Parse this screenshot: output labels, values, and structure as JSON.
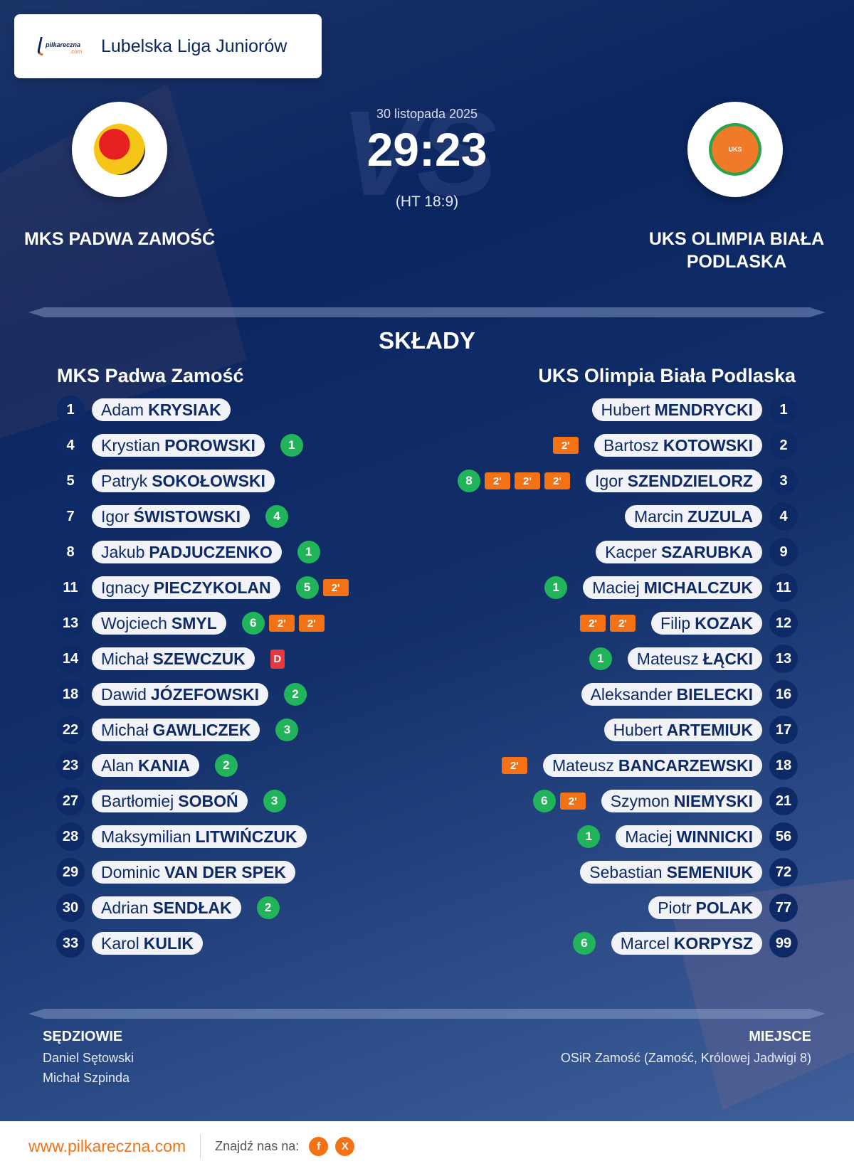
{
  "header": {
    "brand": "pilkareczna",
    "brand_suffix": ".com",
    "league": "Lubelska Liga Juniorów"
  },
  "match": {
    "date": "30 listopada 2025",
    "score": "29:23",
    "halftime": "(HT 18:9)",
    "vs": "VS",
    "home": "MKS PADWA ZAMOŚĆ",
    "away_line1": "UKS OLIMPIA BIAŁA",
    "away_line2": "PODLASKA"
  },
  "colors": {
    "navy": "#0e2a66",
    "goal": "#21b45a",
    "penalty": "#f47216",
    "red_card": "#e8383d"
  },
  "lineups": {
    "title": "SKŁADY",
    "home_title": "MKS Padwa Zamość",
    "away_title": "UKS Olimpia Biała Podlaska",
    "home": [
      {
        "no": "1",
        "first": "Adam",
        "last": "KRYSIAK",
        "goals": "",
        "pens": [],
        "red": ""
      },
      {
        "no": "4",
        "first": "Krystian",
        "last": "POROWSKI",
        "goals": "1",
        "pens": [],
        "red": ""
      },
      {
        "no": "5",
        "first": "Patryk",
        "last": "SOKOŁOWSKI",
        "goals": "",
        "pens": [],
        "red": ""
      },
      {
        "no": "7",
        "first": "Igor",
        "last": "ŚWISTOWSKI",
        "goals": "4",
        "pens": [],
        "red": ""
      },
      {
        "no": "8",
        "first": "Jakub",
        "last": "PADJUCZENKO",
        "goals": "1",
        "pens": [],
        "red": ""
      },
      {
        "no": "11",
        "first": "Ignacy",
        "last": "PIECZYKOLAN",
        "goals": "5",
        "pens": [
          "2'"
        ],
        "red": ""
      },
      {
        "no": "13",
        "first": "Wojciech",
        "last": "SMYL",
        "goals": "6",
        "pens": [
          "2'",
          "2'"
        ],
        "red": ""
      },
      {
        "no": "14",
        "first": "Michał",
        "last": "SZEWCZUK",
        "goals": "",
        "pens": [],
        "red": "D"
      },
      {
        "no": "18",
        "first": "Dawid",
        "last": "JÓZEFOWSKI",
        "goals": "2",
        "pens": [],
        "red": ""
      },
      {
        "no": "22",
        "first": "Michał",
        "last": "GAWLICZEK",
        "goals": "3",
        "pens": [],
        "red": ""
      },
      {
        "no": "23",
        "first": "Alan",
        "last": "KANIA",
        "goals": "2",
        "pens": [],
        "red": ""
      },
      {
        "no": "27",
        "first": "Bartłomiej",
        "last": "SOBOŃ",
        "goals": "3",
        "pens": [],
        "red": ""
      },
      {
        "no": "28",
        "first": "Maksymilian",
        "last": "LITWIŃCZUK",
        "goals": "",
        "pens": [],
        "red": ""
      },
      {
        "no": "29",
        "first": "Dominic",
        "last": "VAN DER SPEK",
        "goals": "",
        "pens": [],
        "red": ""
      },
      {
        "no": "30",
        "first": "Adrian",
        "last": "SENDŁAK",
        "goals": "2",
        "pens": [],
        "red": ""
      },
      {
        "no": "33",
        "first": "Karol",
        "last": "KULIK",
        "goals": "",
        "pens": [],
        "red": ""
      }
    ],
    "away": [
      {
        "no": "1",
        "first": "Hubert",
        "last": "MENDRYCKI",
        "goals": "",
        "pens": [],
        "red": ""
      },
      {
        "no": "2",
        "first": "Bartosz",
        "last": "KOTOWSKI",
        "goals": "",
        "pens": [
          "2'"
        ],
        "red": ""
      },
      {
        "no": "3",
        "first": "Igor",
        "last": "SZENDZIELORZ",
        "goals": "8",
        "pens": [
          "2'",
          "2'",
          "2'"
        ],
        "red": ""
      },
      {
        "no": "4",
        "first": "Marcin",
        "last": "ZUZULA",
        "goals": "",
        "pens": [],
        "red": ""
      },
      {
        "no": "9",
        "first": "Kacper",
        "last": "SZARUBKA",
        "goals": "",
        "pens": [],
        "red": ""
      },
      {
        "no": "11",
        "first": "Maciej",
        "last": "MICHALCZUK",
        "goals": "1",
        "pens": [],
        "red": ""
      },
      {
        "no": "12",
        "first": "Filip",
        "last": "KOZAK",
        "goals": "",
        "pens": [
          "2'",
          "2'"
        ],
        "red": ""
      },
      {
        "no": "13",
        "first": "Mateusz",
        "last": "ŁĄCKI",
        "goals": "1",
        "pens": [],
        "red": ""
      },
      {
        "no": "16",
        "first": "Aleksander",
        "last": "BIELECKI",
        "goals": "",
        "pens": [],
        "red": ""
      },
      {
        "no": "17",
        "first": "Hubert",
        "last": "ARTEMIUK",
        "goals": "",
        "pens": [],
        "red": ""
      },
      {
        "no": "18",
        "first": "Mateusz",
        "last": "BANCARZEWSKI",
        "goals": "",
        "pens": [
          "2'"
        ],
        "red": ""
      },
      {
        "no": "21",
        "first": "Szymon",
        "last": "NIEMYSKI",
        "goals": "6",
        "pens": [
          "2'"
        ],
        "red": ""
      },
      {
        "no": "56",
        "first": "Maciej",
        "last": "WINNICKI",
        "goals": "1",
        "pens": [],
        "red": ""
      },
      {
        "no": "72",
        "first": "Sebastian",
        "last": "SEMENIUK",
        "goals": "",
        "pens": [],
        "red": ""
      },
      {
        "no": "77",
        "first": "Piotr",
        "last": "POLAK",
        "goals": "",
        "pens": [],
        "red": ""
      },
      {
        "no": "99",
        "first": "Marcel",
        "last": "KORPYSZ",
        "goals": "6",
        "pens": [],
        "red": ""
      }
    ]
  },
  "officials": {
    "referees_title": "SĘDZIOWIE",
    "referees": [
      "Daniel Sętowski",
      "Michał Szpinda"
    ],
    "venue_title": "MIEJSCE",
    "venue": "OSiR Zamość (Zamość, Królowej Jadwigi 8)"
  },
  "footer": {
    "site": "www.pilkareczna.com",
    "find_us": "Znajdź nas na:",
    "facebook": "f",
    "x": "X"
  }
}
